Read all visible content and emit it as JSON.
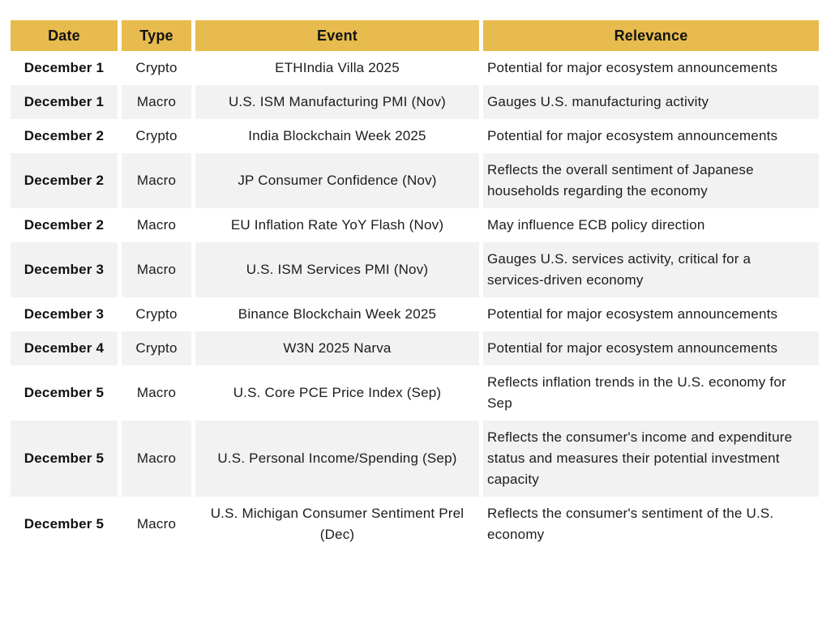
{
  "colors": {
    "header_bg": "#E7BB4D",
    "stripe_bg": "#F2F2F2",
    "text": "#1C1C1C"
  },
  "table": {
    "headers": {
      "date": "Date",
      "type": "Type",
      "event": "Event",
      "relevance": "Relevance"
    },
    "rows": [
      {
        "date": "December 1",
        "type": "Crypto",
        "event": "ETHIndia Villa 2025",
        "relevance": "Potential for major ecosystem announcements"
      },
      {
        "date": "December 1",
        "type": "Macro",
        "event": "U.S. ISM Manufacturing PMI (Nov)",
        "relevance": "Gauges U.S. manufacturing activity"
      },
      {
        "date": "December 2",
        "type": "Crypto",
        "event": "India Blockchain Week 2025",
        "relevance": "Potential for major ecosystem announcements"
      },
      {
        "date": "December 2",
        "type": "Macro",
        "event": "JP Consumer Confidence (Nov)",
        "relevance": "Reflects the overall sentiment of Japanese households regarding the economy"
      },
      {
        "date": "December 2",
        "type": "Macro",
        "event": "EU Inflation Rate YoY Flash (Nov)",
        "relevance": "May influence ECB policy direction"
      },
      {
        "date": "December 3",
        "type": "Macro",
        "event": "U.S. ISM Services PMI (Nov)",
        "relevance": "Gauges U.S. services activity, critical for a services-driven economy"
      },
      {
        "date": "December 3",
        "type": "Crypto",
        "event": "Binance Blockchain Week 2025",
        "relevance": "Potential for major ecosystem announcements"
      },
      {
        "date": "December 4",
        "type": "Crypto",
        "event": "W3N 2025 Narva",
        "relevance": "Potential for major ecosystem announcements"
      },
      {
        "date": "December 5",
        "type": "Macro",
        "event": "U.S. Core PCE Price Index (Sep)",
        "relevance": "Reflects inflation trends in the U.S. economy for Sep"
      },
      {
        "date": "December 5",
        "type": "Macro",
        "event": "U.S. Personal Income/Spending (Sep)",
        "relevance": "Reflects the consumer's income and expenditure status and measures their potential investment capacity"
      },
      {
        "date": "December 5",
        "type": "Macro",
        "event": "U.S. Michigan Consumer Sentiment Prel (Dec)",
        "relevance": "Reflects the consumer's sentiment of the U.S. economy"
      }
    ]
  }
}
